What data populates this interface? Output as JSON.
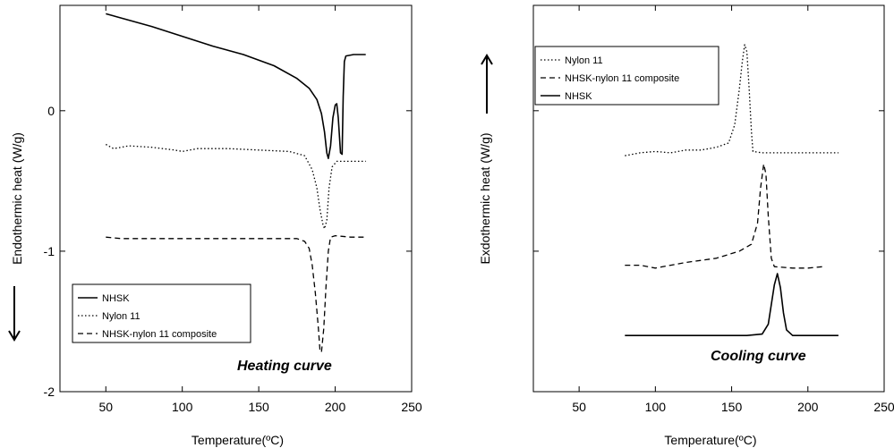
{
  "chart_data": [
    {
      "type": "line",
      "panel": "left",
      "xlabel": "Temperature(ºC)",
      "ylabel": "Endothermic heat (W/g)",
      "xlim": [
        20,
        250
      ],
      "ylim": [
        -2,
        0.75
      ],
      "x_ticks": [
        50,
        100,
        150,
        200,
        250
      ],
      "y_ticks": [
        {
          "value": 0,
          "label": "0"
        },
        {
          "value": -1,
          "label": "-1"
        },
        {
          "value": -2,
          "label": "-2"
        }
      ],
      "legend_position": "bottom-left",
      "arrow_direction": "down",
      "annotation": "Heating curve",
      "grid": false,
      "series": [
        {
          "name": "NHSK",
          "style": "solid",
          "points": [
            [
              50,
              0.69
            ],
            [
              60,
              0.66
            ],
            [
              80,
              0.6
            ],
            [
              100,
              0.53
            ],
            [
              120,
              0.46
            ],
            [
              140,
              0.4
            ],
            [
              160,
              0.32
            ],
            [
              175,
              0.23
            ],
            [
              183,
              0.16
            ],
            [
              188,
              0.08
            ],
            [
              191,
              -0.02
            ],
            [
              193,
              -0.15
            ],
            [
              194.5,
              -0.3
            ],
            [
              195.5,
              -0.34
            ],
            [
              197,
              -0.25
            ],
            [
              198.5,
              -0.05
            ],
            [
              200,
              0.04
            ],
            [
              201,
              0.05
            ],
            [
              202,
              -0.05
            ],
            [
              203.5,
              -0.3
            ],
            [
              204.5,
              -0.31
            ],
            [
              205.2,
              0.1
            ],
            [
              206,
              0.35
            ],
            [
              207,
              0.39
            ],
            [
              212,
              0.4
            ],
            [
              220,
              0.4
            ]
          ]
        },
        {
          "name": "Nylon 11",
          "style": "dotted",
          "points": [
            [
              50,
              -0.24
            ],
            [
              55,
              -0.27
            ],
            [
              60,
              -0.26
            ],
            [
              65,
              -0.25
            ],
            [
              80,
              -0.26
            ],
            [
              95,
              -0.28
            ],
            [
              100,
              -0.29
            ],
            [
              110,
              -0.27
            ],
            [
              130,
              -0.27
            ],
            [
              150,
              -0.28
            ],
            [
              170,
              -0.29
            ],
            [
              180,
              -0.32
            ],
            [
              185,
              -0.42
            ],
            [
              188,
              -0.55
            ],
            [
              190,
              -0.7
            ],
            [
              192,
              -0.81
            ],
            [
              193,
              -0.84
            ],
            [
              194.5,
              -0.78
            ],
            [
              196,
              -0.55
            ],
            [
              198,
              -0.4
            ],
            [
              201,
              -0.36
            ],
            [
              210,
              -0.36
            ],
            [
              220,
              -0.36
            ]
          ]
        },
        {
          "name": "NHSK-nylon 11 composite",
          "style": "dashed",
          "points": [
            [
              50,
              -0.9
            ],
            [
              60,
              -0.91
            ],
            [
              80,
              -0.91
            ],
            [
              120,
              -0.91
            ],
            [
              160,
              -0.91
            ],
            [
              175,
              -0.91
            ],
            [
              180,
              -0.93
            ],
            [
              183,
              -0.98
            ],
            [
              185,
              -1.1
            ],
            [
              187,
              -1.3
            ],
            [
              189,
              -1.55
            ],
            [
              190,
              -1.7
            ],
            [
              191,
              -1.72
            ],
            [
              192.5,
              -1.55
            ],
            [
              194,
              -1.25
            ],
            [
              195.5,
              -1.0
            ],
            [
              197,
              -0.9
            ],
            [
              200,
              -0.89
            ],
            [
              210,
              -0.9
            ],
            [
              220,
              -0.9
            ]
          ]
        }
      ]
    },
    {
      "type": "line",
      "panel": "right",
      "xlabel": "Temperature(ºC)",
      "ylabel": "Exdothermic heat (W/g)",
      "xlim": [
        20,
        250
      ],
      "ylim": [
        -2,
        0.75
      ],
      "x_ticks": [
        50,
        100,
        150,
        200,
        250
      ],
      "y_ticks": [],
      "legend_position": "top-left",
      "arrow_direction": "up",
      "annotation": "Cooling curve",
      "grid": false,
      "series": [
        {
          "name": "Nylon 11",
          "style": "dotted",
          "points": [
            [
              80,
              -0.32
            ],
            [
              90,
              -0.3
            ],
            [
              100,
              -0.29
            ],
            [
              110,
              -0.3
            ],
            [
              120,
              -0.28
            ],
            [
              130,
              -0.28
            ],
            [
              140,
              -0.26
            ],
            [
              148,
              -0.23
            ],
            [
              152,
              -0.1
            ],
            [
              155,
              0.15
            ],
            [
              157,
              0.35
            ],
            [
              158.5,
              0.47
            ],
            [
              160,
              0.42
            ],
            [
              161.5,
              0.15
            ],
            [
              163,
              -0.15
            ],
            [
              164,
              -0.29
            ],
            [
              170,
              -0.3
            ],
            [
              190,
              -0.3
            ],
            [
              220,
              -0.3
            ]
          ]
        },
        {
          "name": "NHSK-nylon 11 composite",
          "style": "dashed",
          "points": [
            [
              80,
              -1.1
            ],
            [
              90,
              -1.1
            ],
            [
              100,
              -1.12
            ],
            [
              110,
              -1.1
            ],
            [
              120,
              -1.08
            ],
            [
              140,
              -1.05
            ],
            [
              155,
              -1.0
            ],
            [
              163,
              -0.95
            ],
            [
              167,
              -0.8
            ],
            [
              169,
              -0.55
            ],
            [
              171,
              -0.38
            ],
            [
              172.5,
              -0.45
            ],
            [
              174,
              -0.75
            ],
            [
              176,
              -1.05
            ],
            [
              178,
              -1.11
            ],
            [
              190,
              -1.12
            ],
            [
              200,
              -1.12
            ],
            [
              210,
              -1.11
            ]
          ]
        },
        {
          "name": "NHSK",
          "style": "solid",
          "points": [
            [
              80,
              -1.6
            ],
            [
              100,
              -1.6
            ],
            [
              120,
              -1.6
            ],
            [
              140,
              -1.6
            ],
            [
              160,
              -1.6
            ],
            [
              170,
              -1.59
            ],
            [
              174,
              -1.52
            ],
            [
              176,
              -1.38
            ],
            [
              178,
              -1.24
            ],
            [
              180,
              -1.16
            ],
            [
              182,
              -1.26
            ],
            [
              184,
              -1.44
            ],
            [
              186,
              -1.56
            ],
            [
              190,
              -1.6
            ],
            [
              200,
              -1.6
            ],
            [
              210,
              -1.6
            ],
            [
              220,
              -1.6
            ]
          ]
        }
      ]
    }
  ]
}
